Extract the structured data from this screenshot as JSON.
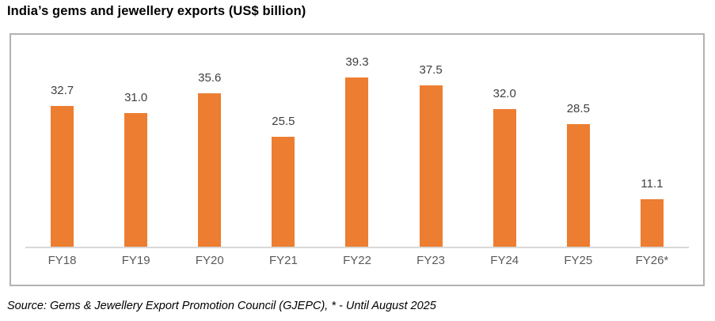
{
  "title": "India’s gems and jewellery exports (US$ billion)",
  "source_note": "Source: Gems & Jewellery Export Promotion Council (GJEPC), * - Until August 2025",
  "colors": {
    "bar": "#ed7d31",
    "axis_line": "#d9d9d9",
    "chart_border": "#b2b2b2",
    "data_label": "#404040",
    "category_label": "#595959",
    "title": "#000000"
  },
  "chart_data": {
    "type": "bar",
    "title": "India’s gems and jewellery exports (US$ billion)",
    "categories": [
      "FY18",
      "FY19",
      "FY20",
      "FY21",
      "FY22",
      "FY23",
      "FY24",
      "FY25",
      "FY26*"
    ],
    "values": [
      32.7,
      31.0,
      35.6,
      25.5,
      39.3,
      37.5,
      32.0,
      28.5,
      11.1
    ],
    "value_labels": [
      "32.7",
      "31.0",
      "35.6",
      "25.5",
      "39.3",
      "37.5",
      "32.0",
      "28.5",
      "11.1"
    ],
    "xlabel": "",
    "ylabel": "",
    "ylim": [
      0,
      45
    ],
    "grid": false,
    "legend": false,
    "data_labels": true,
    "annotation": "* - Until August 2025"
  }
}
